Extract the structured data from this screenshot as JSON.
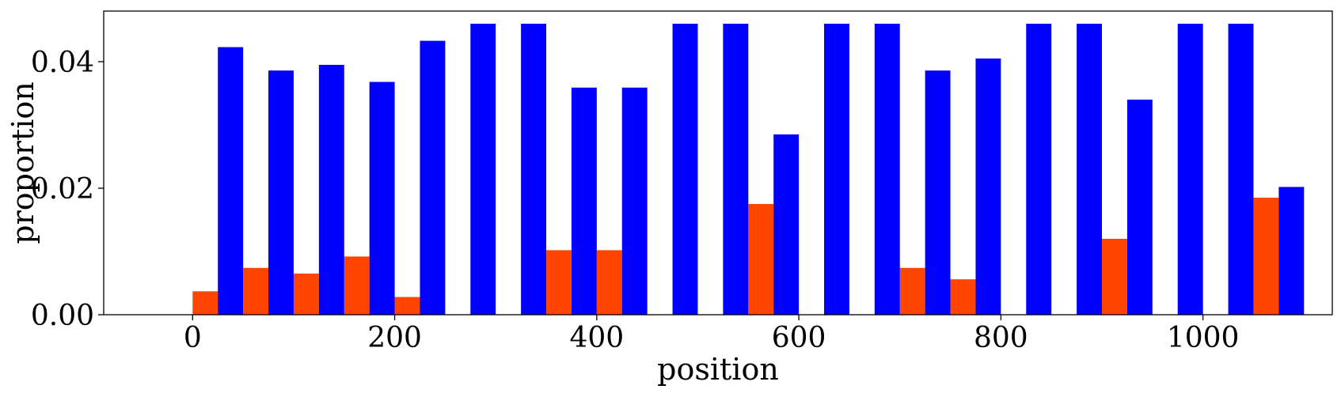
{
  "chart_data": {
    "type": "bar",
    "xlabel": "position",
    "ylabel": "proportion",
    "xlim": [
      -88,
      1128
    ],
    "ylim": [
      0,
      0.048
    ],
    "xticks": [
      0,
      200,
      400,
      600,
      800,
      1000
    ],
    "xtick_labels": [
      "0",
      "200",
      "400",
      "600",
      "800",
      "1000"
    ],
    "yticks": [
      0,
      0.02,
      0.04
    ],
    "ytick_labels": [
      "0.00",
      "0.02",
      "0.04"
    ],
    "grid": false,
    "legend": "none",
    "bar_width": 25,
    "series": [
      {
        "color": "#ff4500",
        "x": [
          0,
          50,
          100,
          150,
          200,
          250,
          300,
          350,
          400,
          450,
          500,
          550,
          600,
          650,
          700,
          750,
          800,
          850,
          900,
          950,
          1000,
          1050
        ],
        "values": [
          0.0037,
          0.0074,
          0.0065,
          0.0092,
          0.0028,
          0.0,
          0.0,
          0.0102,
          0.0102,
          0.0,
          0.0,
          0.0175,
          0.0,
          0.0,
          0.0074,
          0.0056,
          0.0,
          0.0,
          0.012,
          0.0,
          0.0,
          0.0185
        ]
      },
      {
        "color": "#0000ff",
        "x": [
          25,
          75,
          125,
          175,
          225,
          275,
          325,
          375,
          425,
          475,
          525,
          575,
          625,
          675,
          725,
          775,
          825,
          875,
          925,
          975,
          1025,
          1075
        ],
        "values": [
          0.0423,
          0.0386,
          0.0395,
          0.0368,
          0.0433,
          0.046,
          0.046,
          0.0359,
          0.0359,
          0.046,
          0.046,
          0.0285,
          0.046,
          0.046,
          0.0386,
          0.0405,
          0.046,
          0.046,
          0.034,
          0.046,
          0.046,
          0.0202
        ]
      }
    ]
  }
}
